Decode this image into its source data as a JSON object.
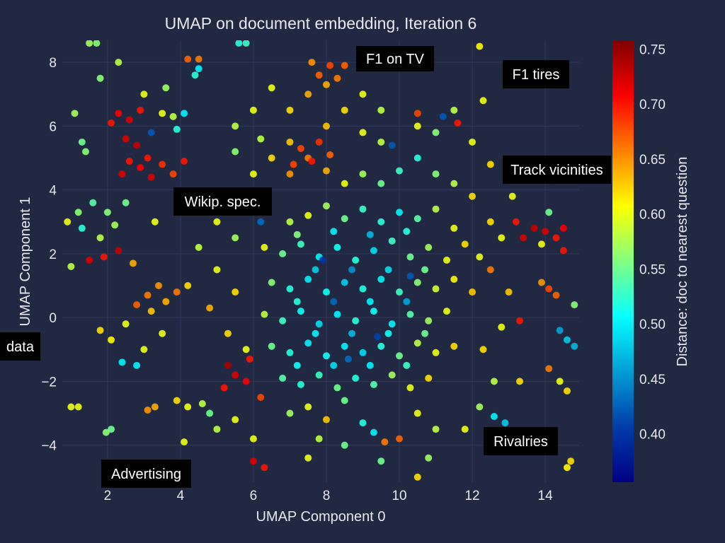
{
  "chart_data": {
    "type": "scatter",
    "title": "UMAP on document embedding, Iteration 6",
    "xlabel": "UMAP Component 0",
    "ylabel": "UMAP Component 1",
    "xlim": [
      0.76,
      14.93
    ],
    "ylim": [
      -5.16,
      8.69
    ],
    "xticks": [
      2,
      4,
      6,
      8,
      10,
      12,
      14
    ],
    "yticks": [
      -4,
      -2,
      0,
      2,
      4,
      6,
      8
    ],
    "xtick_labels": [
      "2",
      "4",
      "6",
      "8",
      "10",
      "12",
      "14"
    ],
    "ytick_labels": [
      "−4",
      "−2",
      "0",
      "2",
      "4",
      "6",
      "8"
    ],
    "grid": true,
    "background": "#212842",
    "gridcolor": "#2e385a",
    "colorbar": {
      "title": "Distance: doc to nearest question",
      "colorscale": "Jet",
      "cmin": 0.356,
      "cmax": 0.758,
      "ticks": [
        0.4,
        0.45,
        0.5,
        0.55,
        0.6,
        0.65,
        0.7,
        0.75
      ],
      "tick_labels": [
        "0.40",
        "0.45",
        "0.50",
        "0.55",
        "0.60",
        "0.65",
        "0.70",
        "0.75"
      ]
    },
    "annotations": [
      {
        "text": "F1 on TV"
      },
      {
        "text": "F1 tires"
      },
      {
        "text": "Track vicinities"
      },
      {
        "text": "Wikip. spec."
      },
      {
        "text": "data"
      },
      {
        "text": "Advertising"
      },
      {
        "text": "Rivalries"
      }
    ],
    "points_xyv": [
      [
        7,
        3,
        0.58
      ],
      [
        7.5,
        3.2,
        0.6
      ],
      [
        8,
        3.5,
        0.57
      ],
      [
        8.5,
        3.1,
        0.55
      ],
      [
        9,
        3.4,
        0.53
      ],
      [
        9.5,
        3,
        0.52
      ],
      [
        10,
        3.3,
        0.5
      ],
      [
        10.5,
        3.1,
        0.54
      ],
      [
        11,
        3.4,
        0.58
      ],
      [
        11.5,
        2.8,
        0.6
      ],
      [
        6.3,
        2.2,
        0.6
      ],
      [
        6.8,
        2,
        0.55
      ],
      [
        7.3,
        2.3,
        0.53
      ],
      [
        7.8,
        1.9,
        0.5
      ],
      [
        8.3,
        2.2,
        0.51
      ],
      [
        8.8,
        1.8,
        0.52
      ],
      [
        9.3,
        2.1,
        0.49
      ],
      [
        9.8,
        2.4,
        0.53
      ],
      [
        10.3,
        1.9,
        0.55
      ],
      [
        10.8,
        2.2,
        0.57
      ],
      [
        11.3,
        1.8,
        0.6
      ],
      [
        11.8,
        2.3,
        0.62
      ],
      [
        12.2,
        1.9,
        0.6
      ],
      [
        6.5,
        1.1,
        0.56
      ],
      [
        7,
        0.9,
        0.52
      ],
      [
        7.5,
        1.2,
        0.5
      ],
      [
        8,
        0.8,
        0.51
      ],
      [
        8.5,
        1.1,
        0.48
      ],
      [
        9,
        0.9,
        0.52
      ],
      [
        9.5,
        1.2,
        0.5
      ],
      [
        10,
        0.8,
        0.53
      ],
      [
        10.5,
        1.1,
        0.56
      ],
      [
        11,
        0.9,
        0.59
      ],
      [
        11.5,
        1.2,
        0.61
      ],
      [
        12,
        0.8,
        0.63
      ],
      [
        6.3,
        0.1,
        0.58
      ],
      [
        6.8,
        -0.1,
        0.53
      ],
      [
        7.3,
        0.2,
        0.51
      ],
      [
        7.8,
        -0.2,
        0.49
      ],
      [
        8.3,
        0.1,
        0.5
      ],
      [
        8.8,
        -0.1,
        0.52
      ],
      [
        9.3,
        0.2,
        0.51
      ],
      [
        9.8,
        -0.2,
        0.5
      ],
      [
        10.3,
        0.1,
        0.54
      ],
      [
        10.8,
        -0.1,
        0.57
      ],
      [
        11.3,
        0.2,
        0.6
      ],
      [
        6.5,
        -0.9,
        0.55
      ],
      [
        7,
        -1.1,
        0.52
      ],
      [
        7.5,
        -0.8,
        0.5
      ],
      [
        8,
        -1.2,
        0.51
      ],
      [
        8.5,
        -0.9,
        0.5
      ],
      [
        9,
        -1.1,
        0.49
      ],
      [
        9.5,
        -0.9,
        0.52
      ],
      [
        10,
        -1.2,
        0.55
      ],
      [
        10.5,
        -0.8,
        0.58
      ],
      [
        11,
        -1.1,
        0.6
      ],
      [
        11.5,
        -0.9,
        0.62
      ],
      [
        6.8,
        -1.9,
        0.54
      ],
      [
        7.3,
        -2.1,
        0.52
      ],
      [
        7.8,
        -1.8,
        0.53
      ],
      [
        8.3,
        -2.2,
        0.55
      ],
      [
        8.8,
        -1.9,
        0.52
      ],
      [
        9.3,
        -2.1,
        0.54
      ],
      [
        9.8,
        -1.8,
        0.57
      ],
      [
        10.3,
        -2.2,
        0.6
      ],
      [
        10.8,
        -1.9,
        0.62
      ],
      [
        7.2,
        2.6,
        0.56
      ],
      [
        8.2,
        2.7,
        0.5
      ],
      [
        9.2,
        2.6,
        0.47
      ],
      [
        10.2,
        2.7,
        0.52
      ],
      [
        7.7,
        1.5,
        0.48
      ],
      [
        8.7,
        1.5,
        0.45
      ],
      [
        9.7,
        1.5,
        0.49
      ],
      [
        10.7,
        1.5,
        0.55
      ],
      [
        7.2,
        0.5,
        0.52
      ],
      [
        8.2,
        0.5,
        0.43
      ],
      [
        9.2,
        0.5,
        0.5
      ],
      [
        10.2,
        0.5,
        0.46
      ],
      [
        7.7,
        -0.5,
        0.5
      ],
      [
        8.7,
        -0.5,
        0.47
      ],
      [
        9.7,
        -0.5,
        0.51
      ],
      [
        10.7,
        -0.5,
        0.55
      ],
      [
        7.2,
        -1.5,
        0.51
      ],
      [
        8.2,
        -1.5,
        0.49
      ],
      [
        9.2,
        -1.5,
        0.5
      ],
      [
        10.2,
        -1.5,
        0.53
      ],
      [
        5,
        3,
        0.6
      ],
      [
        5.5,
        2.5,
        0.57
      ],
      [
        5,
        1.5,
        0.6
      ],
      [
        5.5,
        0.8,
        0.62
      ],
      [
        4.8,
        0.3,
        0.64
      ],
      [
        5.3,
        -0.5,
        0.62
      ],
      [
        5.8,
        -1,
        0.6
      ],
      [
        4.5,
        2.2,
        0.58
      ],
      [
        4.2,
        1,
        0.62
      ],
      [
        5.8,
        3.6,
        0.55
      ],
      [
        6,
        4.5,
        0.6
      ],
      [
        6.5,
        5,
        0.62
      ],
      [
        7,
        4.5,
        0.65
      ],
      [
        7.5,
        5,
        0.66
      ],
      [
        8,
        4.6,
        0.64
      ],
      [
        7,
        5.5,
        0.63
      ],
      [
        6.2,
        5.6,
        0.58
      ],
      [
        5.5,
        5.2,
        0.56
      ],
      [
        8.5,
        4.2,
        0.6
      ],
      [
        9,
        4.5,
        0.57
      ],
      [
        9.5,
        4.2,
        0.55
      ],
      [
        10,
        4.6,
        0.53
      ],
      [
        10.5,
        5,
        0.52
      ],
      [
        11,
        4.5,
        0.56
      ],
      [
        11.5,
        4.2,
        0.58
      ],
      [
        12,
        3.8,
        0.62
      ],
      [
        9.5,
        5.5,
        0.58
      ],
      [
        10.5,
        6,
        0.6
      ],
      [
        11,
        5.8,
        0.56
      ],
      [
        12,
        5.5,
        0.6
      ],
      [
        9,
        5.8,
        0.6
      ],
      [
        8,
        6,
        0.63
      ],
      [
        7,
        6.5,
        0.62
      ],
      [
        6,
        6.5,
        0.6
      ],
      [
        5.5,
        6,
        0.58
      ],
      [
        8.5,
        6.5,
        0.62
      ],
      [
        9.5,
        6.5,
        0.58
      ],
      [
        11.5,
        6.5,
        0.58
      ],
      [
        12.3,
        6.8,
        0.6
      ],
      [
        7.5,
        7,
        0.64
      ],
      [
        6.5,
        7.2,
        0.6
      ],
      [
        9,
        7,
        0.6
      ],
      [
        7.3,
        5.3,
        0.68
      ],
      [
        7.8,
        5.5,
        0.69
      ],
      [
        7.6,
        4.9,
        0.7
      ],
      [
        8.1,
        5.1,
        0.67
      ],
      [
        7.1,
        4.8,
        0.68
      ],
      [
        7.8,
        7.6,
        0.67
      ],
      [
        8.1,
        7.9,
        0.68
      ],
      [
        8.3,
        7.5,
        0.66
      ],
      [
        7.6,
        8,
        0.65
      ],
      [
        8,
        7.3,
        0.64
      ],
      [
        8.5,
        7.9,
        0.67
      ],
      [
        2.9,
        4.7,
        0.71
      ],
      [
        3.2,
        4.4,
        0.72
      ],
      [
        2.6,
        4.9,
        0.7
      ],
      [
        3.5,
        4.8,
        0.69
      ],
      [
        3.8,
        4.5,
        0.68
      ],
      [
        2.4,
        4.5,
        0.72
      ],
      [
        3.1,
        5,
        0.7
      ],
      [
        4.1,
        4.9,
        0.7
      ],
      [
        2.3,
        6.4,
        0.71
      ],
      [
        2.6,
        6.2,
        0.72
      ],
      [
        2.9,
        6.5,
        0.7
      ],
      [
        2.5,
        5.6,
        0.72
      ],
      [
        2.8,
        5.4,
        0.73
      ],
      [
        2.1,
        6.1,
        0.7
      ],
      [
        3.5,
        6.4,
        0.6
      ],
      [
        3.8,
        6.3,
        0.58
      ],
      [
        3.9,
        5.9,
        0.52
      ],
      [
        4.1,
        6.4,
        0.5
      ],
      [
        3.6,
        7.2,
        0.57
      ],
      [
        4.5,
        7.8,
        0.5
      ],
      [
        4.4,
        7.6,
        0.52
      ],
      [
        4.2,
        8.1,
        0.67
      ],
      [
        4.5,
        8.1,
        0.66
      ],
      [
        1.5,
        8.6,
        0.57
      ],
      [
        1.7,
        8.6,
        0.56
      ],
      [
        5.6,
        8.6,
        0.52
      ],
      [
        5.8,
        8.6,
        0.53
      ],
      [
        12.2,
        8.5,
        0.61
      ],
      [
        1.1,
        6.4,
        0.57
      ],
      [
        1.3,
        5.5,
        0.55
      ],
      [
        1.4,
        5.2,
        0.56
      ],
      [
        3,
        7,
        0.6
      ],
      [
        1.8,
        7.5,
        0.56
      ],
      [
        2.3,
        8,
        0.58
      ],
      [
        1.2,
        3.3,
        0.56
      ],
      [
        1.6,
        3.6,
        0.54
      ],
      [
        2,
        3.3,
        0.56
      ],
      [
        1.3,
        2.8,
        0.52
      ],
      [
        0.9,
        3,
        0.6
      ],
      [
        1.8,
        2.5,
        0.58
      ],
      [
        2.5,
        3.6,
        0.55
      ],
      [
        2.2,
        2.9,
        0.57
      ],
      [
        3.3,
        3,
        0.6
      ],
      [
        1.5,
        1.8,
        0.72
      ],
      [
        1.9,
        1.9,
        0.7
      ],
      [
        2.3,
        2.1,
        0.73
      ],
      [
        2.7,
        1.7,
        0.64
      ],
      [
        1,
        1.6,
        0.58
      ],
      [
        3.1,
        0.7,
        0.66
      ],
      [
        3.4,
        1,
        0.65
      ],
      [
        2.8,
        0.4,
        0.67
      ],
      [
        3.6,
        0.5,
        0.64
      ],
      [
        3.2,
        0.2,
        0.63
      ],
      [
        3.9,
        0.8,
        0.66
      ],
      [
        2.5,
        -0.2,
        0.6
      ],
      [
        1.8,
        -0.4,
        0.62
      ],
      [
        2.1,
        -0.7,
        0.61
      ],
      [
        2.4,
        -1.4,
        0.5
      ],
      [
        3,
        -1,
        0.6
      ],
      [
        3.5,
        -0.5,
        0.6
      ],
      [
        5.5,
        -1.8,
        0.72
      ],
      [
        5.3,
        -1.5,
        0.74
      ],
      [
        5.8,
        -2,
        0.71
      ],
      [
        5.2,
        -2.2,
        0.7
      ],
      [
        6.2,
        -2.5,
        0.68
      ],
      [
        5.9,
        -1.3,
        0.7
      ],
      [
        4.2,
        -2.8,
        0.6
      ],
      [
        4.6,
        -2.7,
        0.58
      ],
      [
        3.9,
        -2.6,
        0.62
      ],
      [
        3.1,
        -2.9,
        0.65
      ],
      [
        3.3,
        -2.8,
        0.64
      ],
      [
        1,
        -2.8,
        0.6
      ],
      [
        1.2,
        -2.8,
        0.6
      ],
      [
        1.96,
        -3.6,
        0.56
      ],
      [
        2.1,
        -3.5,
        0.55
      ],
      [
        4.1,
        -3.9,
        0.6
      ],
      [
        5,
        -3.5,
        0.58
      ],
      [
        5.5,
        -3.2,
        0.6
      ],
      [
        4.8,
        -3,
        0.55
      ],
      [
        6,
        -4.5,
        0.72
      ],
      [
        6.3,
        -4.7,
        0.7
      ],
      [
        6,
        -3.8,
        0.6
      ],
      [
        2.8,
        -1.5,
        0.5
      ],
      [
        7,
        -3,
        0.57
      ],
      [
        7.5,
        -2.8,
        0.6
      ],
      [
        8,
        -3.2,
        0.63
      ],
      [
        8.5,
        -2.6,
        0.55
      ],
      [
        9,
        -3.3,
        0.52
      ],
      [
        9.3,
        -3.6,
        0.5
      ],
      [
        9.6,
        -3.9,
        0.66
      ],
      [
        10,
        -3.8,
        0.67
      ],
      [
        9.5,
        -4.5,
        0.55
      ],
      [
        8.5,
        -4,
        0.55
      ],
      [
        7.8,
        -3.8,
        0.58
      ],
      [
        10.5,
        -3,
        0.6
      ],
      [
        11,
        -3.5,
        0.58
      ],
      [
        10.8,
        -4.4,
        0.57
      ],
      [
        10.5,
        -5,
        0.62
      ],
      [
        7.5,
        -4.4,
        0.6
      ],
      [
        12.5,
        3,
        0.62
      ],
      [
        12.8,
        2.5,
        0.6
      ],
      [
        12.5,
        1.5,
        0.66
      ],
      [
        13,
        0.8,
        0.63
      ],
      [
        12.8,
        -0.3,
        0.6
      ],
      [
        12.3,
        -1,
        0.62
      ],
      [
        12.6,
        -2,
        0.58
      ],
      [
        12.2,
        -2.8,
        0.57
      ],
      [
        12.6,
        -3.1,
        0.5
      ],
      [
        12.9,
        -3.3,
        0.48
      ],
      [
        11.8,
        -3.5,
        0.6
      ],
      [
        13.3,
        -2,
        0.62
      ],
      [
        13.4,
        2.5,
        0.72
      ],
      [
        13.7,
        2.8,
        0.73
      ],
      [
        14,
        2.7,
        0.72
      ],
      [
        14.3,
        2.5,
        0.7
      ],
      [
        14.5,
        2.8,
        0.71
      ],
      [
        13.2,
        3,
        0.7
      ],
      [
        13.9,
        2.3,
        0.6
      ],
      [
        14.1,
        3.3,
        0.55
      ],
      [
        14.5,
        2.1,
        0.7
      ],
      [
        14.1,
        0.9,
        0.68
      ],
      [
        14.3,
        0.7,
        0.67
      ],
      [
        13.9,
        1.1,
        0.65
      ],
      [
        14.8,
        0.4,
        0.56
      ],
      [
        14.6,
        -0.7,
        0.48
      ],
      [
        14.8,
        -0.9,
        0.47
      ],
      [
        14.4,
        -0.4,
        0.46
      ],
      [
        14.1,
        -1.6,
        0.66
      ],
      [
        14.4,
        -2,
        0.6
      ],
      [
        14.6,
        -2.3,
        0.62
      ],
      [
        14.6,
        -4.7,
        0.61
      ],
      [
        14.7,
        -4.5,
        0.62
      ],
      [
        13.1,
        3.8,
        0.6
      ],
      [
        12.5,
        4.8,
        0.62
      ],
      [
        13.3,
        -0.1,
        0.7
      ],
      [
        9.8,
        5.4,
        0.42
      ],
      [
        7.9,
        1.8,
        0.4
      ],
      [
        9.4,
        -0.6,
        0.41
      ],
      [
        6.2,
        3,
        0.43
      ],
      [
        11.2,
        6.3,
        0.42
      ],
      [
        10.3,
        1.3,
        0.42
      ],
      [
        3.2,
        5.8,
        0.42
      ],
      [
        8.6,
        -1.3,
        0.43
      ],
      [
        11.6,
        6.1,
        0.7
      ],
      [
        10.5,
        6.4,
        0.68
      ]
    ]
  }
}
